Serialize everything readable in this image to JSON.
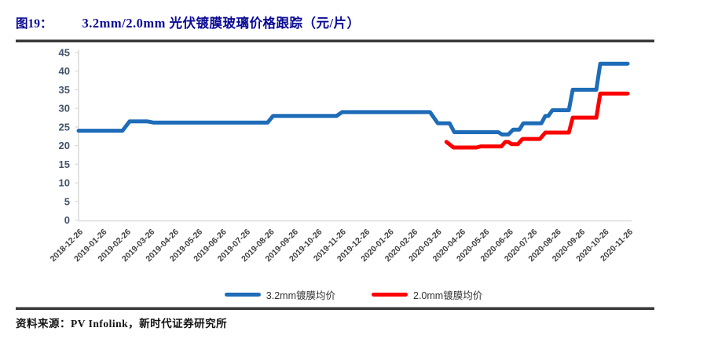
{
  "header": {
    "figure_label": "图19：",
    "title": "3.2mm/2.0mm 光伏镀膜玻璃价格跟踪（元/片）"
  },
  "source": {
    "label": "资料来源：PV Infolink，新时代证券研究所"
  },
  "legend": [
    {
      "label": "3.2mm镀膜均价",
      "color": "#1E6CB8"
    },
    {
      "label": "2.0mm镀膜均价",
      "color": "#FA0000"
    }
  ],
  "chart_data": {
    "type": "line",
    "title": "3.2mm/2.0mm 光伏镀膜玻璃价格跟踪（元/片）",
    "xlabel": "",
    "ylabel": "元/片",
    "ylim": [
      0,
      45
    ],
    "y_ticks": [
      0,
      5,
      10,
      15,
      20,
      25,
      30,
      35,
      40,
      45
    ],
    "grid": false,
    "legend_position": "bottom",
    "x_start": "2018-12-26",
    "x_end": "2020-11-26",
    "x_tick_labels": [
      "2018-12-26",
      "2019-01-26",
      "2019-02-26",
      "2019-03-26",
      "2019-04-26",
      "2019-05-26",
      "2019-06-26",
      "2019-07-26",
      "2019-08-26",
      "2019-09-26",
      "2019-10-26",
      "2019-11-26",
      "2019-12-26",
      "2020-01-26",
      "2020-02-26",
      "2020-03-26",
      "2020-04-26",
      "2020-05-26",
      "2020-06-26",
      "2020-07-26",
      "2020-08-26",
      "2020-09-26",
      "2020-10-26",
      "2020-11-26"
    ],
    "series": [
      {
        "name": "3.2mm镀膜均价",
        "color": "#1E6CB8",
        "points": [
          [
            "2018-12-26",
            24
          ],
          [
            "2019-02-20",
            24
          ],
          [
            "2019-03-01",
            26.5
          ],
          [
            "2019-03-24",
            26.5
          ],
          [
            "2019-03-31",
            26.2
          ],
          [
            "2019-08-24",
            26.2
          ],
          [
            "2019-08-31",
            28
          ],
          [
            "2019-11-20",
            28
          ],
          [
            "2019-11-27",
            29
          ],
          [
            "2020-03-18",
            29
          ],
          [
            "2020-03-28",
            26
          ],
          [
            "2020-04-12",
            26
          ],
          [
            "2020-04-18",
            23.6
          ],
          [
            "2020-06-13",
            23.6
          ],
          [
            "2020-06-18",
            23
          ],
          [
            "2020-06-26",
            23
          ],
          [
            "2020-07-02",
            24.3
          ],
          [
            "2020-07-10",
            24.3
          ],
          [
            "2020-07-15",
            26
          ],
          [
            "2020-08-07",
            26
          ],
          [
            "2020-08-12",
            28
          ],
          [
            "2020-08-16",
            28
          ],
          [
            "2020-08-21",
            29.5
          ],
          [
            "2020-09-11",
            29.5
          ],
          [
            "2020-09-16",
            35
          ],
          [
            "2020-10-16",
            35
          ],
          [
            "2020-10-21",
            42
          ],
          [
            "2020-11-25",
            42
          ]
        ]
      },
      {
        "name": "2.0mm镀膜均价",
        "color": "#FA0000",
        "points": [
          [
            "2020-04-08",
            21
          ],
          [
            "2020-04-17",
            19.5
          ],
          [
            "2020-05-16",
            19.5
          ],
          [
            "2020-05-22",
            19.8
          ],
          [
            "2020-06-17",
            19.8
          ],
          [
            "2020-06-22",
            21
          ],
          [
            "2020-06-26",
            21
          ],
          [
            "2020-06-30",
            20.4
          ],
          [
            "2020-07-08",
            20.4
          ],
          [
            "2020-07-14",
            21.8
          ],
          [
            "2020-08-05",
            21.8
          ],
          [
            "2020-08-12",
            23.5
          ],
          [
            "2020-09-11",
            23.5
          ],
          [
            "2020-09-16",
            27.5
          ],
          [
            "2020-10-16",
            27.5
          ],
          [
            "2020-10-21",
            34
          ],
          [
            "2020-11-25",
            34
          ]
        ]
      }
    ]
  }
}
